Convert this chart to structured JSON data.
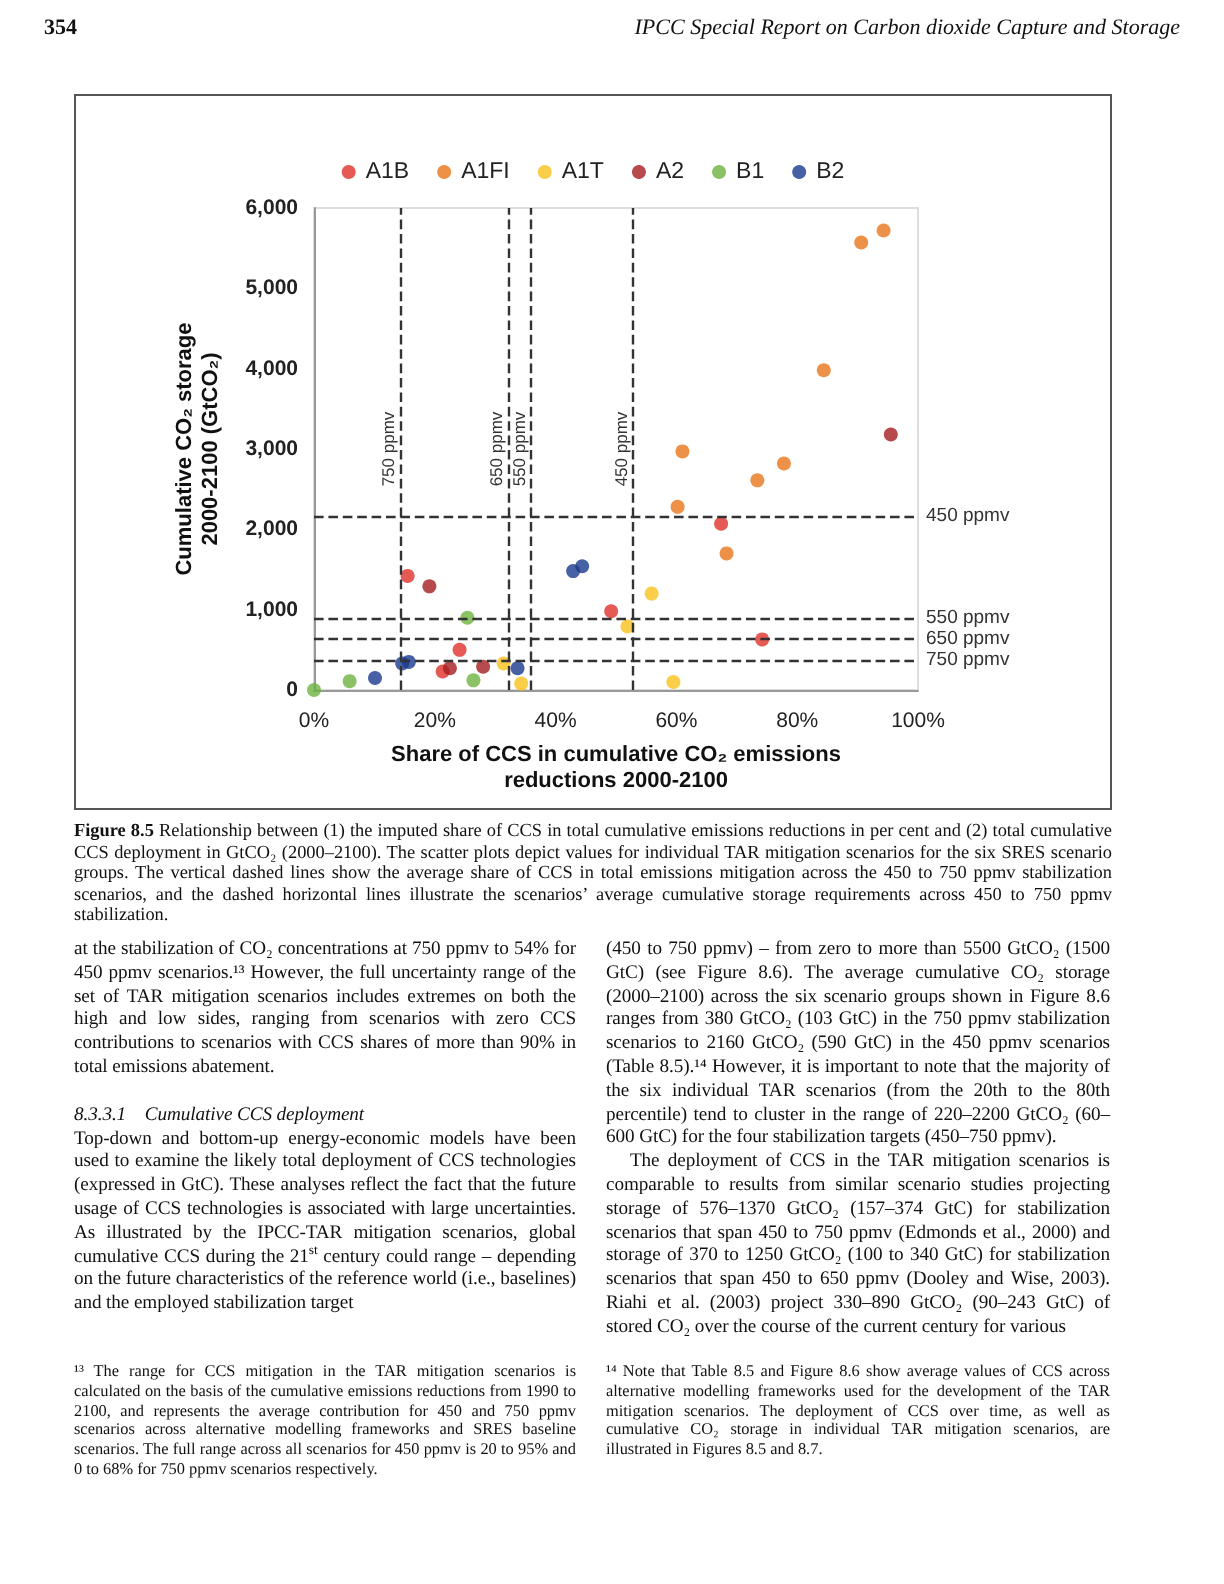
{
  "chart_data": {
    "type": "scatter",
    "xlabel": "Share of CCS in cumulative CO₂ emissions\nreductions 2000-2100",
    "ylabel": "Cumulative CO₂ storage\n2000-2100 (GtCO₂)",
    "xlim": [
      0,
      100
    ],
    "xticks": [
      {
        "value": 0,
        "label": "0%"
      },
      {
        "value": 20,
        "label": "20%"
      },
      {
        "value": 40,
        "label": "40%"
      },
      {
        "value": 60,
        "label": "60%"
      },
      {
        "value": 80,
        "label": "80%"
      },
      {
        "value": 100,
        "label": "100%"
      }
    ],
    "ylim": [
      0,
      6000
    ],
    "yticks": [
      {
        "value": 0,
        "label": "0"
      },
      {
        "value": 1000,
        "label": "1,000"
      },
      {
        "value": 2000,
        "label": "2,000"
      },
      {
        "value": 3000,
        "label": "3,000"
      },
      {
        "value": 4000,
        "label": "4,000"
      },
      {
        "value": 5000,
        "label": "5,000"
      },
      {
        "value": 6000,
        "label": "6,000"
      }
    ],
    "series": [
      {
        "name": "A1B",
        "color": "#e0312a",
        "x": [
          15.5,
          21.3,
          24.1,
          49.2,
          67.4,
          74.2
        ],
        "values": [
          1420,
          230,
          500,
          980,
          2070,
          630
        ]
      },
      {
        "name": "A1FI",
        "color": "#e8751a",
        "x": [
          60.2,
          61.0,
          68.3,
          73.4,
          77.8,
          84.4,
          90.6,
          94.3
        ],
        "values": [
          2280,
          2970,
          1700,
          2610,
          2820,
          3980,
          5570,
          5720
        ]
      },
      {
        "name": "A1T",
        "color": "#f9c21b",
        "x": [
          31.4,
          34.3,
          51.9,
          55.9,
          59.5
        ],
        "values": [
          330,
          80,
          790,
          1200,
          100
        ]
      },
      {
        "name": "A2",
        "color": "#a51d1f",
        "x": [
          19.1,
          22.5,
          28.0,
          95.5
        ],
        "values": [
          1290,
          270,
          290,
          3180
        ]
      },
      {
        "name": "B1",
        "color": "#6db33f",
        "x": [
          0,
          5.9,
          25.4,
          26.4
        ],
        "values": [
          0,
          110,
          900,
          120
        ]
      },
      {
        "name": "B2",
        "color": "#1a3a8f",
        "x": [
          10.1,
          14.6,
          15.7,
          33.7,
          42.9,
          44.4
        ],
        "values": [
          150,
          330,
          350,
          270,
          1480,
          1540
        ]
      }
    ],
    "ref_lines": [
      {
        "axis": "x",
        "value": 14.3,
        "label": "750 ppmv",
        "color": "#333333",
        "line_style": "dashed"
      },
      {
        "axis": "x",
        "value": 32.1,
        "label": "650 ppmv",
        "color": "#333333",
        "line_style": "dashed"
      },
      {
        "axis": "x",
        "value": 36.0,
        "label": "550 ppmv",
        "color": "#333333",
        "line_style": "dashed"
      },
      {
        "axis": "x",
        "value": 52.8,
        "label": "450 ppmv",
        "color": "#333333",
        "line_style": "dashed"
      },
      {
        "axis": "y",
        "value": 2170,
        "label": "450 ppmv",
        "color": "#333333",
        "line_style": "dashed"
      },
      {
        "axis": "y",
        "value": 900,
        "label": "550 ppmv",
        "color": "#333333",
        "line_style": "dashed"
      },
      {
        "axis": "y",
        "value": 630,
        "label": "650 ppmv",
        "color": "#333333",
        "line_style": "dashed"
      },
      {
        "axis": "y",
        "value": 370,
        "label": "750 ppmv",
        "color": "#333333",
        "line_style": "dashed"
      }
    ],
    "marker": "circle",
    "grid": false,
    "legend": "top",
    "annotations": [
      "354",
      "IPCC Special Report on Carbon dioxide Capture and Storage",
      "Figure 8.5",
      "Relationship between (1) the imputed share of CCS in total cumulative emissions reductions in per cent and (2) total cumulative CCS deployment in GtCO₂ (2000–2100). The scatter plots depict values for individual TAR mitigation scenarios for the six SRES scenario groups. The vertical dashed lines show the average share of CCS in total emissions mitigation across the 450 to 750 ppmv stabilization scenarios, and the dashed horizontal lines illustrate the scenarios’ average cumulative storage requirements across 450 to 750 ppmv stabilization.",
      "at the stabilization of CO₂ concentrations at 750 ppmv to 54% for 450 ppmv scenarios.¹³ However, the full uncertainty range of the set of TAR mitigation scenarios includes extremes on both the high and low sides, ranging from scenarios with zero CCS contributions to scenarios with CCS shares of more than 90% in total emissions abatement.",
      "8.3.3.1    Cumulative CCS deployment",
      "Top-down and bottom-up energy-economic models have been used to examine the likely total deployment of CCS technologies (expressed in GtC). These analyses reflect the fact that the future usage of CCS technologies is associated with large uncertainties. As illustrated by the IPCC-TAR mitigation scenarios, global cumulative CCS during the 21$^{st}$ century could range – depending on the future characteristics of the reference world (i.e., baselines) and the employed stabilization target",
      "(450 to 750 ppmv) – from zero to more than 5500 GtCO₂ (1500 GtC) (see Figure 8.6). The average cumulative CO₂ storage (2000–2100) across the six scenario groups shown in Figure 8.6 ranges from 380 GtCO₂ (103 GtC) in the 750 ppmv stabilization scenarios to 2160 GtCO₂ (590 GtC) in the 450 ppmv scenarios (Table 8.5).¹⁴ However, it is important to note that the majority of the six individual TAR scenarios (from the 20th to the 80th percentile) tend to cluster in the range of 220–2200 GtCO₂ (60–600 GtC) for the four stabilization targets (450–750 ppmv).",
      "The deployment of CCS in the TAR mitigation scenarios is comparable to results from similar scenario studies projecting storage of 576–1370 GtCO₂ (157–374 GtC) for stabilization scenarios that span 450 to 750 ppmv (Edmonds et al., 2000) and storage of 370 to 1250 GtCO₂ (100 to 340 GtC) for stabilization scenarios that span 450 to 650 ppmv (Dooley and Wise, 2003). Riahi et al. (2003) project 330–890 GtCO₂ (90–243 GtC) of stored CO₂ over the course of the current century for various",
      "¹³ The range for CCS mitigation in the TAR mitigation scenarios is calculated on the basis of the cumulative emissions reductions from 1990 to 2100, and represents the average contribution for 450 and 750 ppmv scenarios across alternative modelling frameworks and SRES baseline scenarios. The full range across all scenarios for 450 ppmv is 20 to 95% and 0 to 68% for 750 ppmv scenarios respectively.",
      "¹⁴ Note that Table 8.5 and Figure 8.6 show average values of CCS across alternative modelling frameworks used for the development of the TAR mitigation scenarios. The deployment of CCS over time, as well as cumulative CO₂ storage in individual TAR mitigation scenarios, are illustrated in Figures 8.5 and 8.7."
    ]
  }
}
